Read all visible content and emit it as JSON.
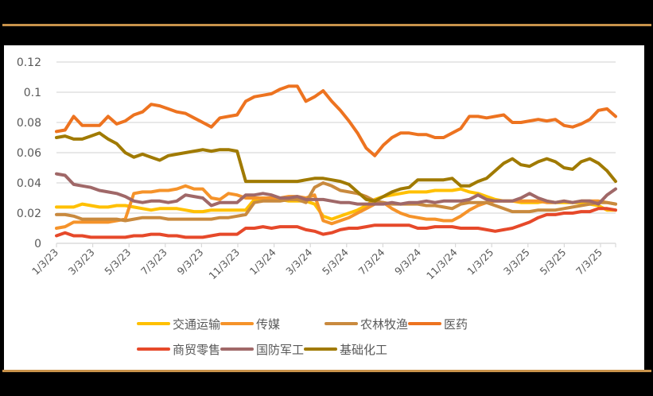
{
  "colors": {
    "background": "#000000",
    "panel": "#FFFFFF",
    "rule": "#C8924A",
    "grid": "#D9D9D9",
    "axis_text": "#595959"
  },
  "chart_data": {
    "type": "line",
    "title": "",
    "xlabel": "",
    "ylabel": "",
    "ylim": [
      0,
      0.12
    ],
    "yticks": [
      "0",
      "0.02",
      "0.04",
      "0.06",
      "0.08",
      "0.1",
      "0.12"
    ],
    "x_tick_labels": [
      "1/3/23",
      "3/3/23",
      "5/3/23",
      "7/3/23",
      "9/3/23",
      "11/3/23",
      "1/3/24",
      "3/3/24",
      "5/3/24",
      "7/3/24",
      "9/3/24",
      "11/3/24",
      "1/3/25",
      "3/3/25",
      "5/3/25",
      "7/3/25"
    ],
    "grid": true,
    "legend_position": "bottom",
    "x_note": "approx. half-month sampling from 1/3/23 to ~8/2025 (66 points)",
    "series": [
      {
        "name": "交通运输",
        "color": "#FFC000",
        "values": [
          0.024,
          0.024,
          0.024,
          0.026,
          0.025,
          0.024,
          0.024,
          0.025,
          0.025,
          0.024,
          0.023,
          0.022,
          0.023,
          0.023,
          0.023,
          0.022,
          0.021,
          0.021,
          0.022,
          0.022,
          0.022,
          0.022,
          0.022,
          0.029,
          0.029,
          0.029,
          0.029,
          0.028,
          0.028,
          0.028,
          0.026,
          0.018,
          0.016,
          0.018,
          0.02,
          0.022,
          0.025,
          0.029,
          0.031,
          0.032,
          0.033,
          0.034,
          0.034,
          0.034,
          0.035,
          0.035,
          0.035,
          0.036,
          0.034,
          0.033,
          0.031,
          0.029,
          0.028,
          0.028,
          0.027,
          0.027,
          0.027,
          0.028,
          0.027,
          0.027,
          0.027,
          0.027,
          0.026,
          0.025,
          0.022,
          0.022
        ]
      },
      {
        "name": "传媒",
        "color": "#F5932A",
        "values": [
          0.01,
          0.011,
          0.014,
          0.014,
          0.014,
          0.014,
          0.014,
          0.015,
          0.016,
          0.033,
          0.034,
          0.034,
          0.035,
          0.035,
          0.036,
          0.038,
          0.036,
          0.036,
          0.03,
          0.029,
          0.033,
          0.032,
          0.03,
          0.03,
          0.03,
          0.03,
          0.03,
          0.031,
          0.031,
          0.03,
          0.032,
          0.015,
          0.013,
          0.015,
          0.017,
          0.02,
          0.023,
          0.026,
          0.027,
          0.023,
          0.02,
          0.018,
          0.017,
          0.016,
          0.016,
          0.015,
          0.015,
          0.018,
          0.022,
          0.025,
          0.027,
          0.028,
          0.028,
          0.028,
          0.028,
          0.028,
          0.028,
          0.027,
          0.027,
          0.028,
          0.027,
          0.028,
          0.028,
          0.028,
          0.027,
          0.026
        ]
      },
      {
        "name": "农林牧渔",
        "color": "#C98A3E",
        "values": [
          0.019,
          0.019,
          0.018,
          0.016,
          0.016,
          0.016,
          0.016,
          0.016,
          0.015,
          0.016,
          0.017,
          0.017,
          0.017,
          0.016,
          0.016,
          0.016,
          0.016,
          0.016,
          0.016,
          0.017,
          0.017,
          0.018,
          0.019,
          0.027,
          0.028,
          0.028,
          0.028,
          0.029,
          0.029,
          0.027,
          0.037,
          0.04,
          0.038,
          0.035,
          0.034,
          0.033,
          0.031,
          0.028,
          0.027,
          0.026,
          0.026,
          0.026,
          0.026,
          0.025,
          0.025,
          0.024,
          0.023,
          0.026,
          0.027,
          0.027,
          0.027,
          0.025,
          0.023,
          0.021,
          0.021,
          0.021,
          0.022,
          0.022,
          0.022,
          0.023,
          0.024,
          0.025,
          0.026,
          0.027,
          0.027,
          0.026
        ]
      },
      {
        "name": "医药",
        "color": "#ED7320",
        "values": [
          0.074,
          0.075,
          0.084,
          0.078,
          0.078,
          0.078,
          0.084,
          0.079,
          0.081,
          0.085,
          0.087,
          0.092,
          0.091,
          0.089,
          0.087,
          0.086,
          0.083,
          0.08,
          0.077,
          0.083,
          0.084,
          0.085,
          0.094,
          0.097,
          0.098,
          0.099,
          0.102,
          0.104,
          0.104,
          0.094,
          0.097,
          0.101,
          0.094,
          0.088,
          0.081,
          0.073,
          0.063,
          0.058,
          0.065,
          0.07,
          0.073,
          0.073,
          0.072,
          0.072,
          0.07,
          0.07,
          0.073,
          0.076,
          0.084,
          0.084,
          0.083,
          0.084,
          0.085,
          0.08,
          0.08,
          0.081,
          0.082,
          0.081,
          0.082,
          0.078,
          0.077,
          0.079,
          0.082,
          0.088,
          0.089,
          0.084
        ]
      },
      {
        "name": "商贸零售",
        "color": "#E6492A",
        "values": [
          0.005,
          0.007,
          0.005,
          0.005,
          0.004,
          0.004,
          0.004,
          0.004,
          0.004,
          0.005,
          0.005,
          0.006,
          0.006,
          0.005,
          0.005,
          0.004,
          0.004,
          0.004,
          0.005,
          0.006,
          0.006,
          0.006,
          0.01,
          0.01,
          0.011,
          0.01,
          0.011,
          0.011,
          0.011,
          0.009,
          0.008,
          0.006,
          0.007,
          0.009,
          0.01,
          0.01,
          0.011,
          0.012,
          0.012,
          0.012,
          0.012,
          0.012,
          0.01,
          0.01,
          0.011,
          0.011,
          0.011,
          0.01,
          0.01,
          0.01,
          0.009,
          0.008,
          0.009,
          0.01,
          0.012,
          0.014,
          0.017,
          0.019,
          0.019,
          0.02,
          0.02,
          0.021,
          0.021,
          0.023,
          0.023,
          0.022
        ]
      },
      {
        "name": "国防军工",
        "color": "#A06868",
        "values": [
          0.046,
          0.045,
          0.039,
          0.038,
          0.037,
          0.035,
          0.034,
          0.033,
          0.031,
          0.028,
          0.027,
          0.028,
          0.028,
          0.027,
          0.028,
          0.032,
          0.031,
          0.03,
          0.025,
          0.027,
          0.027,
          0.027,
          0.032,
          0.032,
          0.033,
          0.032,
          0.03,
          0.03,
          0.031,
          0.029,
          0.029,
          0.029,
          0.028,
          0.027,
          0.027,
          0.026,
          0.026,
          0.026,
          0.026,
          0.027,
          0.026,
          0.027,
          0.027,
          0.028,
          0.027,
          0.028,
          0.028,
          0.028,
          0.029,
          0.032,
          0.029,
          0.028,
          0.028,
          0.028,
          0.03,
          0.033,
          0.03,
          0.028,
          0.027,
          0.028,
          0.027,
          0.028,
          0.028,
          0.026,
          0.032,
          0.036
        ]
      },
      {
        "name": "基础化工",
        "color": "#A07A00",
        "values": [
          0.07,
          0.071,
          0.069,
          0.069,
          0.071,
          0.073,
          0.069,
          0.066,
          0.06,
          0.057,
          0.059,
          0.057,
          0.055,
          0.058,
          0.059,
          0.06,
          0.061,
          0.062,
          0.061,
          0.062,
          0.062,
          0.061,
          0.041,
          0.041,
          0.041,
          0.041,
          0.041,
          0.041,
          0.041,
          0.042,
          0.043,
          0.043,
          0.042,
          0.041,
          0.039,
          0.034,
          0.029,
          0.028,
          0.031,
          0.034,
          0.036,
          0.037,
          0.042,
          0.042,
          0.042,
          0.042,
          0.043,
          0.038,
          0.038,
          0.041,
          0.043,
          0.048,
          0.053,
          0.056,
          0.052,
          0.051,
          0.054,
          0.056,
          0.054,
          0.05,
          0.049,
          0.054,
          0.056,
          0.053,
          0.048,
          0.041
        ]
      }
    ]
  }
}
